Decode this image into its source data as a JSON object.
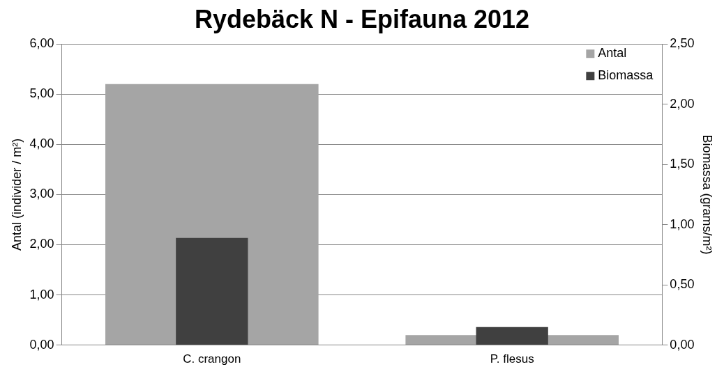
{
  "chart_data": {
    "type": "bar",
    "title": "Rydebäck N - Epifauna 2012",
    "ylabel": "Antal (individer / m²)",
    "y2label": "Biomassa (grams/m²)",
    "categories": [
      "C. crangon",
      "P. flesus"
    ],
    "series": [
      {
        "name": "Antal",
        "color": "#a5a5a5",
        "values": [
          5.2,
          0.2
        ]
      },
      {
        "name": "Biomassa",
        "color": "#404040",
        "values": [
          0.89,
          0.15
        ],
        "axis": "y2"
      }
    ],
    "ylim": [
      0,
      6
    ],
    "yticks": [
      {
        "value": 0,
        "label": "0,00"
      },
      {
        "value": 1,
        "label": "1,00"
      },
      {
        "value": 2,
        "label": "2,00"
      },
      {
        "value": 3,
        "label": "3,00"
      },
      {
        "value": 4,
        "label": "4,00"
      },
      {
        "value": 5,
        "label": "5,00"
      },
      {
        "value": 6,
        "label": "6,00"
      }
    ],
    "y2lim": [
      0,
      2.5
    ],
    "y2ticks": [
      {
        "value": 0,
        "label": "0,00"
      },
      {
        "value": 0.5,
        "label": "0,50"
      },
      {
        "value": 1,
        "label": "1,00"
      },
      {
        "value": 1.5,
        "label": "1,50"
      },
      {
        "value": 2,
        "label": "2,00"
      },
      {
        "value": 2.5,
        "label": "2,50"
      }
    ],
    "grid": "y",
    "legend": "top right"
  }
}
